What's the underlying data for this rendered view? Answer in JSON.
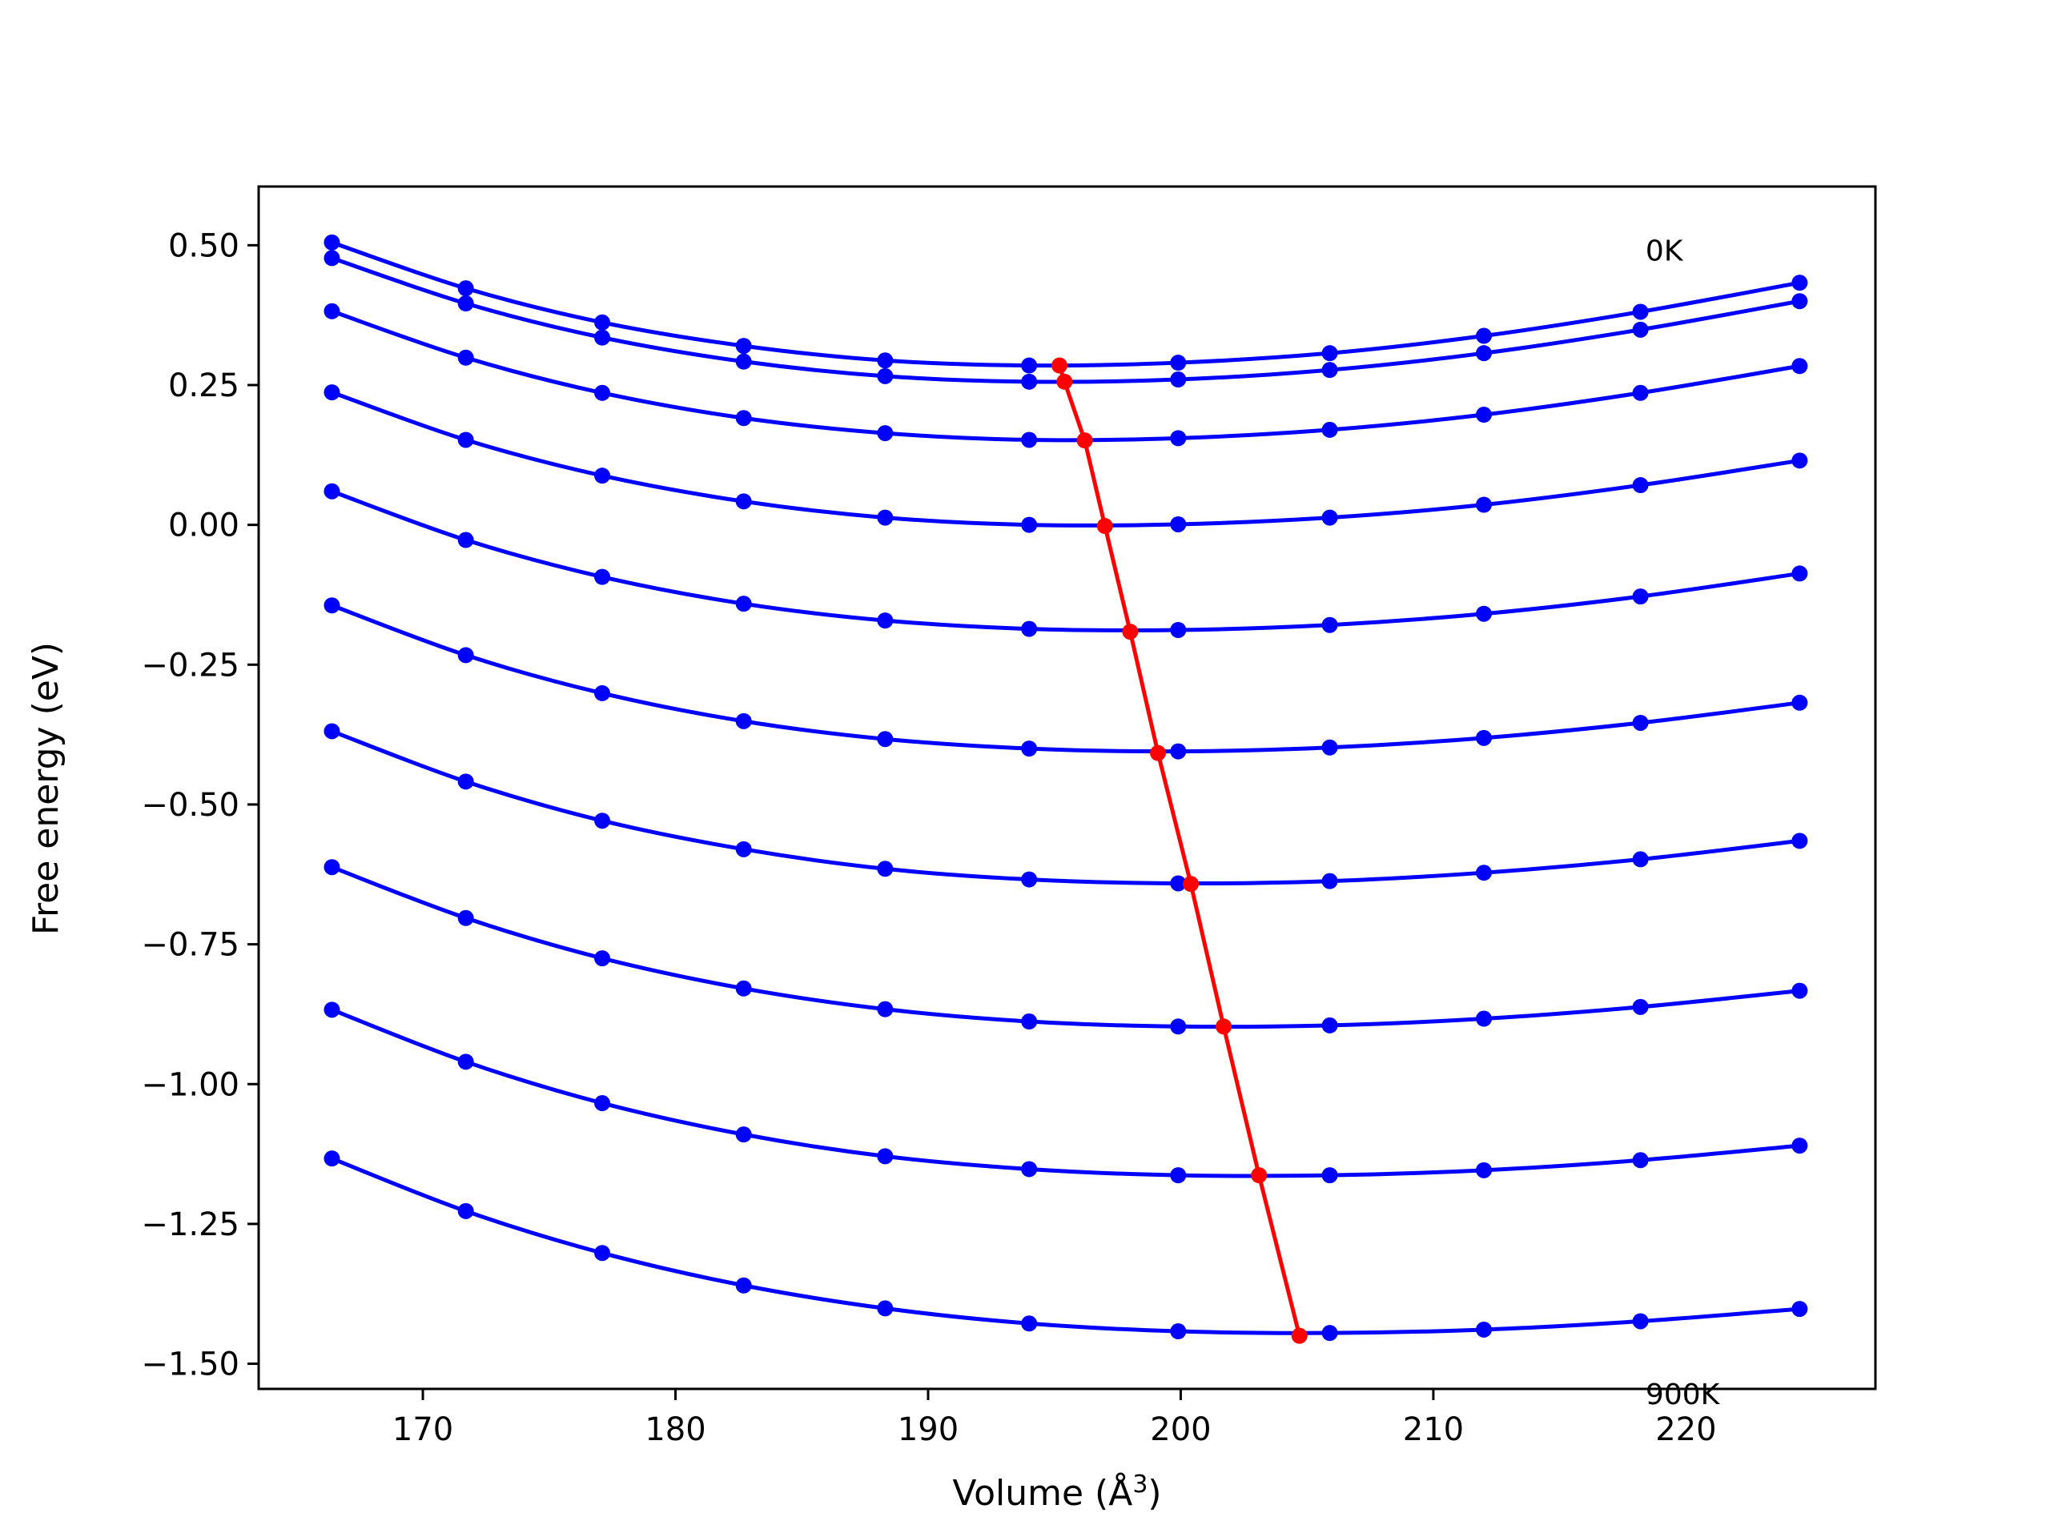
{
  "chart_data": {
    "type": "line",
    "xlabel": "Volume (Å$^3$)",
    "xlabel_parts": {
      "text": "Volume (Å",
      "sup": "3",
      "close": ")"
    },
    "ylabel": "Free energy (eV)",
    "xlim": [
      163.5,
      227.5
    ],
    "ylim": [
      -1.545,
      0.605
    ],
    "xticks": [
      170,
      180,
      190,
      200,
      210,
      220
    ],
    "yticks": [
      0.5,
      0.25,
      0.0,
      -0.25,
      -0.5,
      -0.75,
      -1.0,
      -1.25,
      -1.5
    ],
    "ytick_labels": [
      "0.50",
      "0.25",
      "0.00",
      "−0.25",
      "−0.50",
      "−0.75",
      "−1.00",
      "−1.25",
      "−1.50"
    ],
    "grid": false,
    "annotations": [
      {
        "text": "0K",
        "x": 218.4,
        "y": 0.49
      },
      {
        "text": "900K",
        "x": 218.4,
        "y": -1.555
      }
    ],
    "colors": {
      "curves": "#0000ff",
      "minimum_line": "#ff0000"
    },
    "x": [
      166.4,
      171.7,
      177.1,
      182.7,
      188.3,
      194.0,
      199.9,
      205.9,
      212.0,
      218.2,
      224.5
    ],
    "series": [
      {
        "values": [
          0.505,
          0.423,
          0.362,
          0.32,
          0.294,
          0.285,
          0.29,
          0.307,
          0.338,
          0.381,
          0.433
        ]
      },
      {
        "values": [
          0.477,
          0.396,
          0.335,
          0.292,
          0.266,
          0.256,
          0.26,
          0.277,
          0.307,
          0.349,
          0.4
        ]
      },
      {
        "values": [
          0.382,
          0.299,
          0.236,
          0.191,
          0.164,
          0.152,
          0.155,
          0.17,
          0.197,
          0.236,
          0.284
        ]
      },
      {
        "values": [
          0.237,
          0.152,
          0.088,
          0.042,
          0.013,
          0.0,
          0.001,
          0.013,
          0.036,
          0.071,
          0.115
        ]
      },
      {
        "values": [
          0.06,
          -0.027,
          -0.093,
          -0.141,
          -0.171,
          -0.186,
          -0.188,
          -0.179,
          -0.159,
          -0.128,
          -0.087
        ]
      },
      {
        "values": [
          -0.144,
          -0.233,
          -0.301,
          -0.351,
          -0.383,
          -0.4,
          -0.405,
          -0.398,
          -0.381,
          -0.354,
          -0.318
        ]
      },
      {
        "values": [
          -0.369,
          -0.459,
          -0.529,
          -0.58,
          -0.615,
          -0.634,
          -0.641,
          -0.637,
          -0.622,
          -0.598,
          -0.565
        ]
      },
      {
        "values": [
          -0.612,
          -0.703,
          -0.775,
          -0.829,
          -0.866,
          -0.888,
          -0.897,
          -0.895,
          -0.883,
          -0.862,
          -0.833
        ]
      },
      {
        "values": [
          -0.867,
          -0.96,
          -1.034,
          -1.09,
          -1.129,
          -1.152,
          -1.163,
          -1.163,
          -1.154,
          -1.136,
          -1.11
        ]
      },
      {
        "values": [
          -1.133,
          -1.227,
          -1.302,
          -1.36,
          -1.401,
          -1.428,
          -1.442,
          -1.445,
          -1.439,
          -1.424,
          -1.402
        ]
      }
    ],
    "minimum_line": {
      "x": [
        195.2,
        195.4,
        196.2,
        197.0,
        198.0,
        199.1,
        200.4,
        201.7,
        203.1,
        204.7
      ],
      "y": [
        0.285,
        0.256,
        0.151,
        -0.002,
        -0.191,
        -0.408,
        -0.642,
        -0.897,
        -1.163,
        -1.45
      ]
    }
  }
}
